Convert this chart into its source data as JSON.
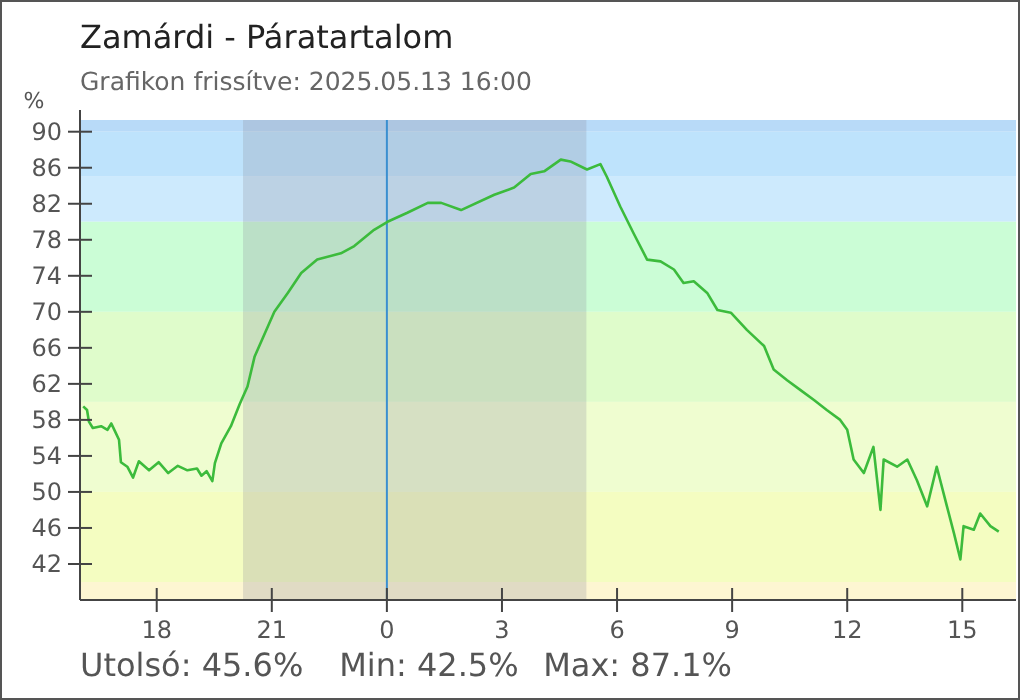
{
  "chart_data": {
    "type": "line",
    "title": "Zamárdi - Páratartalom",
    "subtitle": "Grafikon frissítve: 2025.05.13 16:00",
    "ylabel": "%",
    "annotations": [
      "Utolsó: 45.6%",
      "Min: 42.5%",
      "Max: 87.1%"
    ],
    "xlim": [
      "2025-05-12T16:00",
      "2025-05-13T16:24"
    ],
    "ylim": [
      38,
      91.3
    ],
    "xticks": [
      {
        "value": "2025-05-12T18:00",
        "label": "18"
      },
      {
        "value": "2025-05-12T21:00",
        "label": "21"
      },
      {
        "value": "2025-05-13T00:00",
        "label": "0"
      },
      {
        "value": "2025-05-13T03:00",
        "label": "3"
      },
      {
        "value": "2025-05-13T06:00",
        "label": "6"
      },
      {
        "value": "2025-05-13T09:00",
        "label": "9"
      },
      {
        "value": "2025-05-13T12:00",
        "label": "12"
      },
      {
        "value": "2025-05-13T15:00",
        "label": "15"
      }
    ],
    "yticks": [
      42,
      46,
      50,
      54,
      58,
      62,
      66,
      70,
      74,
      78,
      82,
      86,
      90
    ],
    "bands": [
      {
        "axis": "y",
        "from": 90,
        "to": 91.3,
        "color": "#b8daf8"
      },
      {
        "axis": "y",
        "from": 85,
        "to": 90,
        "color": "#bee3fc"
      },
      {
        "axis": "y",
        "from": 80,
        "to": 85,
        "color": "#cdeafd"
      },
      {
        "axis": "y",
        "from": 70,
        "to": 80,
        "color": "#cbfdd6"
      },
      {
        "axis": "y",
        "from": 60,
        "to": 70,
        "color": "#dffccb"
      },
      {
        "axis": "y",
        "from": 50,
        "to": 60,
        "color": "#effdd0"
      },
      {
        "axis": "y",
        "from": 40,
        "to": 50,
        "color": "#f4fdc1"
      },
      {
        "axis": "y",
        "from": 38,
        "to": 40,
        "color": "#fdf6d2"
      },
      {
        "axis": "x",
        "from": "2025-05-12T20:15",
        "to": "2025-05-13T05:12",
        "color": "#8a8a9a"
      }
    ],
    "ref_lines": [
      {
        "axis": "x",
        "value": "2025-05-13T00:00",
        "color": "#3a8fd0"
      }
    ],
    "series": [
      {
        "color": "#3cbb3c",
        "x": [
          "2025-05-12T16:05",
          "2025-05-12T16:11",
          "2025-05-12T16:14",
          "2025-05-12T16:20",
          "2025-05-12T16:33",
          "2025-05-12T16:43",
          "2025-05-12T16:49",
          "2025-05-12T16:55",
          "2025-05-12T17:01",
          "2025-05-12T17:04",
          "2025-05-12T17:14",
          "2025-05-12T17:23",
          "2025-05-12T17:32",
          "2025-05-12T17:48",
          "2025-05-12T18:03",
          "2025-05-12T18:18",
          "2025-05-12T18:33",
          "2025-05-12T18:48",
          "2025-05-12T19:03",
          "2025-05-12T19:10",
          "2025-05-12T19:18",
          "2025-05-12T19:27",
          "2025-05-12T19:31",
          "2025-05-12T19:41",
          "2025-05-12T19:56",
          "2025-05-12T20:10",
          "2025-05-12T20:22",
          "2025-05-12T20:33",
          "2025-05-12T20:49",
          "2025-05-12T21:04",
          "2025-05-12T21:25",
          "2025-05-12T21:46",
          "2025-05-12T22:11",
          "2025-05-12T22:48",
          "2025-05-12T23:09",
          "2025-05-12T23:40",
          "2025-05-13T00:01",
          "2025-05-13T00:32",
          "2025-05-13T01:04",
          "2025-05-13T01:25",
          "2025-05-13T01:56",
          "2025-05-13T02:48",
          "2025-05-13T03:19",
          "2025-05-13T03:45",
          "2025-05-13T04:06",
          "2025-05-13T04:32",
          "2025-05-13T04:47",
          "2025-05-13T05:13",
          "2025-05-13T05:34",
          "2025-05-13T05:44",
          "2025-05-13T06:05",
          "2025-05-13T06:26",
          "2025-05-13T06:47",
          "2025-05-13T07:08",
          "2025-05-13T07:29",
          "2025-05-13T07:44",
          "2025-05-13T08:00",
          "2025-05-13T08:21",
          "2025-05-13T08:37",
          "2025-05-13T08:58",
          "2025-05-13T09:23",
          "2025-05-13T09:50",
          "2025-05-13T10:05",
          "2025-05-13T10:26",
          "2025-05-13T10:47",
          "2025-05-13T11:08",
          "2025-05-13T11:28",
          "2025-05-13T11:49",
          "2025-05-13T12:00",
          "2025-05-13T12:10",
          "2025-05-13T12:26",
          "2025-05-13T12:41",
          "2025-05-13T12:52",
          "2025-05-13T12:57",
          "2025-05-13T13:18",
          "2025-05-13T13:34",
          "2025-05-13T13:49",
          "2025-05-13T14:05",
          "2025-05-13T14:20",
          "2025-05-13T14:36",
          "2025-05-13T14:47",
          "2025-05-13T14:57",
          "2025-05-13T15:02",
          "2025-05-13T15:18",
          "2025-05-13T15:28",
          "2025-05-13T15:44",
          "2025-05-13T15:57"
        ],
        "values": [
          59.5,
          59.1,
          57.8,
          57.1,
          57.3,
          56.9,
          57.6,
          56.7,
          55.8,
          53.3,
          52.8,
          51.6,
          53.4,
          52.4,
          53.3,
          52.1,
          52.9,
          52.4,
          52.6,
          51.8,
          52.3,
          51.2,
          53.2,
          55.4,
          57.3,
          59.8,
          61.7,
          65.0,
          67.6,
          70.0,
          72.1,
          74.3,
          75.8,
          76.5,
          77.3,
          79.1,
          80.0,
          81.0,
          82.1,
          82.1,
          81.3,
          83.0,
          83.8,
          85.3,
          85.6,
          86.9,
          86.7,
          85.8,
          86.4,
          85.0,
          81.7,
          78.7,
          75.8,
          75.6,
          74.7,
          73.2,
          73.4,
          72.1,
          70.2,
          69.9,
          68.0,
          66.2,
          63.6,
          62.4,
          61.3,
          60.2,
          59.1,
          58.0,
          56.9,
          53.6,
          52.1,
          55.0,
          48.0,
          53.6,
          52.8,
          53.6,
          51.3,
          48.4,
          52.8,
          48.4,
          45.4,
          42.5,
          46.2,
          45.8,
          47.6,
          46.2,
          45.6
        ]
      }
    ]
  }
}
